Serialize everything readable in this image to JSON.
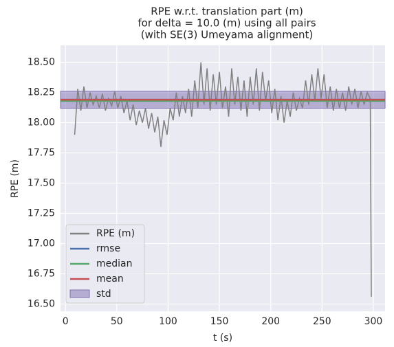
{
  "chart_data": {
    "type": "line",
    "title": [
      "RPE w.r.t. translation part (m)",
      "for delta = 10.0 (m) using all pairs",
      "(with SE(3) Umeyama alignment)"
    ],
    "xlabel": "t (s)",
    "ylabel": "RPE (m)",
    "x": [
      9,
      12,
      15,
      18,
      21,
      24,
      27,
      30,
      33,
      36,
      39,
      42,
      45,
      48,
      51,
      54,
      57,
      60,
      63,
      66,
      69,
      72,
      75,
      78,
      81,
      84,
      87,
      90,
      93,
      96,
      99,
      102,
      105,
      108,
      111,
      114,
      117,
      120,
      123,
      126,
      129,
      132,
      135,
      138,
      141,
      144,
      147,
      150,
      153,
      156,
      159,
      162,
      165,
      168,
      171,
      174,
      177,
      180,
      183,
      186,
      189,
      192,
      195,
      198,
      201,
      204,
      207,
      210,
      213,
      216,
      219,
      222,
      225,
      228,
      231,
      234,
      237,
      240,
      243,
      246,
      249,
      252,
      255,
      258,
      261,
      264,
      267,
      270,
      273,
      276,
      279,
      282,
      285,
      288,
      291,
      294,
      297,
      298
    ],
    "series": [
      {
        "name": "RPE (m)",
        "color": "#808080",
        "values": [
          17.9,
          18.28,
          18.1,
          18.3,
          18.12,
          18.25,
          18.15,
          18.22,
          18.12,
          18.24,
          18.1,
          18.2,
          18.14,
          18.26,
          18.12,
          18.22,
          18.08,
          18.18,
          18.02,
          18.15,
          17.98,
          18.1,
          18.0,
          18.12,
          17.95,
          18.08,
          17.92,
          18.05,
          17.8,
          18.02,
          17.9,
          18.12,
          18.02,
          18.25,
          18.05,
          18.22,
          18.08,
          18.28,
          18.05,
          18.35,
          18.12,
          18.5,
          18.15,
          18.45,
          18.1,
          18.4,
          18.15,
          18.42,
          18.12,
          18.3,
          18.05,
          18.45,
          18.15,
          18.38,
          18.1,
          18.35,
          18.05,
          18.38,
          18.15,
          18.45,
          18.1,
          18.42,
          18.18,
          18.35,
          18.08,
          18.28,
          18.02,
          18.22,
          18.0,
          18.18,
          18.05,
          18.25,
          18.1,
          18.2,
          18.12,
          18.35,
          18.15,
          18.4,
          18.18,
          18.45,
          18.2,
          18.4,
          18.12,
          18.3,
          18.1,
          18.28,
          18.12,
          18.25,
          18.1,
          18.3,
          18.15,
          18.28,
          18.12,
          18.26,
          18.15,
          18.25,
          18.2,
          16.56
        ]
      }
    ],
    "hlines": [
      {
        "name": "rmse",
        "color": "#4c72b0",
        "value": 18.19
      },
      {
        "name": "median",
        "color": "#55a868",
        "value": 18.18
      },
      {
        "name": "mean",
        "color": "#c44e52",
        "value": 18.19
      }
    ],
    "std_band": {
      "name": "std",
      "color": "#8172b2",
      "values": [
        18.12,
        18.26
      ]
    },
    "xlim": [
      -4.8,
      311.4
    ],
    "ylim": [
      16.44,
      18.64
    ],
    "xticks": [
      0,
      50,
      100,
      150,
      200,
      250,
      300
    ],
    "yticks": [
      {
        "value": 16.5,
        "label": "16.50"
      },
      {
        "value": 16.75,
        "label": "16.75"
      },
      {
        "value": 17.0,
        "label": "17.00"
      },
      {
        "value": 17.25,
        "label": "17.25"
      },
      {
        "value": 17.5,
        "label": "17.50"
      },
      {
        "value": 17.75,
        "label": "17.75"
      },
      {
        "value": 18.0,
        "label": "18.00"
      },
      {
        "value": 18.25,
        "label": "18.25"
      },
      {
        "value": 18.5,
        "label": "18.50"
      }
    ],
    "grid": true,
    "legend": "lower left"
  }
}
